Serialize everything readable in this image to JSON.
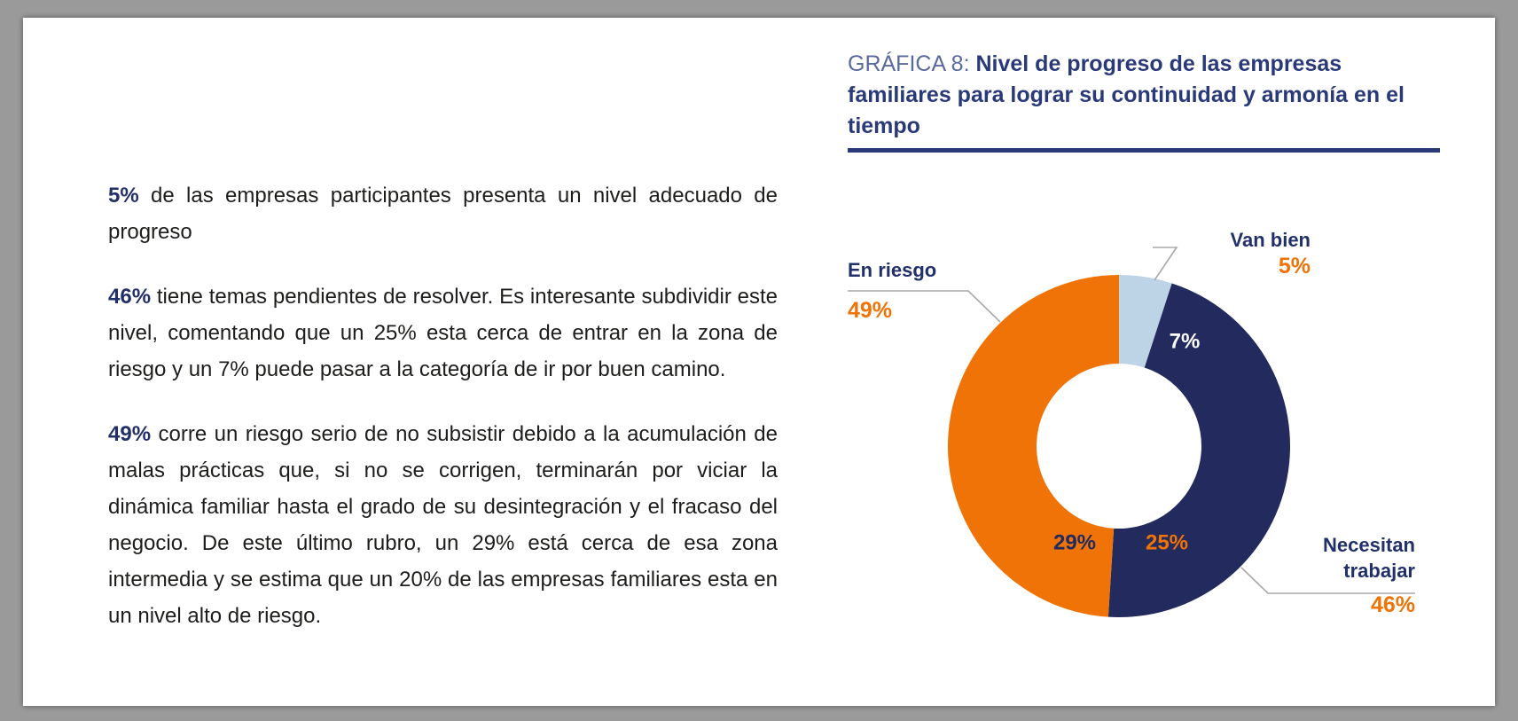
{
  "paragraphs": [
    {
      "lead": "5%",
      "text": " de las empresas participantes presenta un nivel adecuado de progreso"
    },
    {
      "lead": "46%",
      "text": " tiene temas pendientes de resolver. Es interesante subdividir este nivel, comentando que un 25% esta cerca de entrar en la zona de riesgo y un 7% puede pasar a la categoría de ir por buen camino."
    },
    {
      "lead": "49%",
      "text": " corre un riesgo serio de no subsistir debido a la acumulación de malas prácticas que, si no se corrigen, terminarán por viciar la dinámica familiar hasta el grado de su desintegración y el fracaso del negocio. De este último rubro, un 29% está cerca de esa zona intermedia y se estima que un 20% de las empresas familiares esta en un nivel alto de riesgo."
    }
  ],
  "chart_data": {
    "type": "pie",
    "title_prefix": "GRÁFICA 8: ",
    "title": "Nivel de progreso de las empresas familiares para lograr su continuidad y armonía en el tiempo",
    "slices": [
      {
        "label": "Van bien",
        "value": 5,
        "value_label": "5%",
        "color": "#bdd3e6"
      },
      {
        "label": "Necesitan trabajar",
        "value": 46,
        "value_label": "46%",
        "color": "#232b5e"
      },
      {
        "label": "En riesgo",
        "value": 49,
        "value_label": "49%",
        "color": "#ef7306"
      }
    ],
    "inner_labels": [
      {
        "text": "7%",
        "color": "#ffffff"
      },
      {
        "text": "25%",
        "color": "#ef7306"
      },
      {
        "text": "29%",
        "color": "#232b5e"
      }
    ],
    "colors": {
      "label": "#22306a",
      "value": "#ef7306",
      "leader": "#a8a8a8"
    }
  }
}
